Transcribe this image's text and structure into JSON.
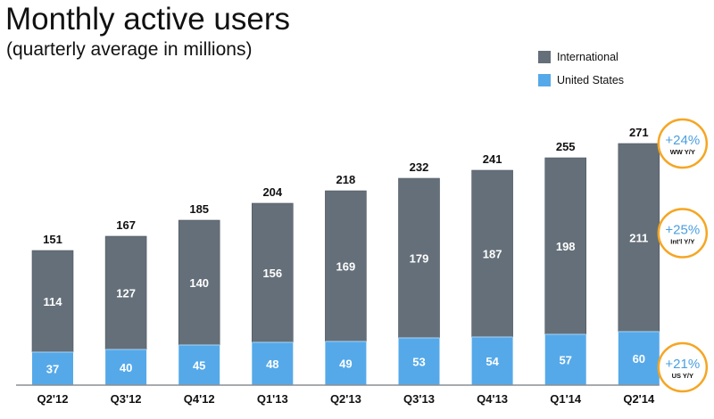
{
  "chart_data": {
    "type": "bar",
    "stacked": true,
    "title": "Monthly active users",
    "subtitle": "(quarterly average in millions)",
    "xlabel": "",
    "ylabel": "",
    "ylim": [
      0,
      280
    ],
    "grid": false,
    "legend_position": "top-right",
    "categories": [
      "Q2'12",
      "Q3'12",
      "Q4'12",
      "Q1'13",
      "Q2'13",
      "Q3'13",
      "Q4'13",
      "Q1'14",
      "Q2'14"
    ],
    "series": [
      {
        "name": "United States",
        "color": "#55a9e9",
        "values": [
          37,
          40,
          45,
          48,
          49,
          53,
          54,
          57,
          60
        ]
      },
      {
        "name": "International",
        "color": "#646f79",
        "values": [
          114,
          127,
          140,
          156,
          169,
          179,
          187,
          198,
          211
        ]
      }
    ],
    "totals": [
      151,
      167,
      185,
      204,
      218,
      232,
      241,
      255,
      271
    ],
    "legend": [
      {
        "name": "International",
        "color": "#646f79"
      },
      {
        "name": "United States",
        "color": "#55a9e9"
      }
    ],
    "annotations": [
      {
        "value": "+24%",
        "label": "WW Y/Y",
        "anchor": "total"
      },
      {
        "value": "+25%",
        "label": "Int'l Y/Y",
        "anchor": "International"
      },
      {
        "value": "+21%",
        "label": "US Y/Y",
        "anchor": "United States"
      }
    ],
    "badge_color": "#f5a623"
  }
}
